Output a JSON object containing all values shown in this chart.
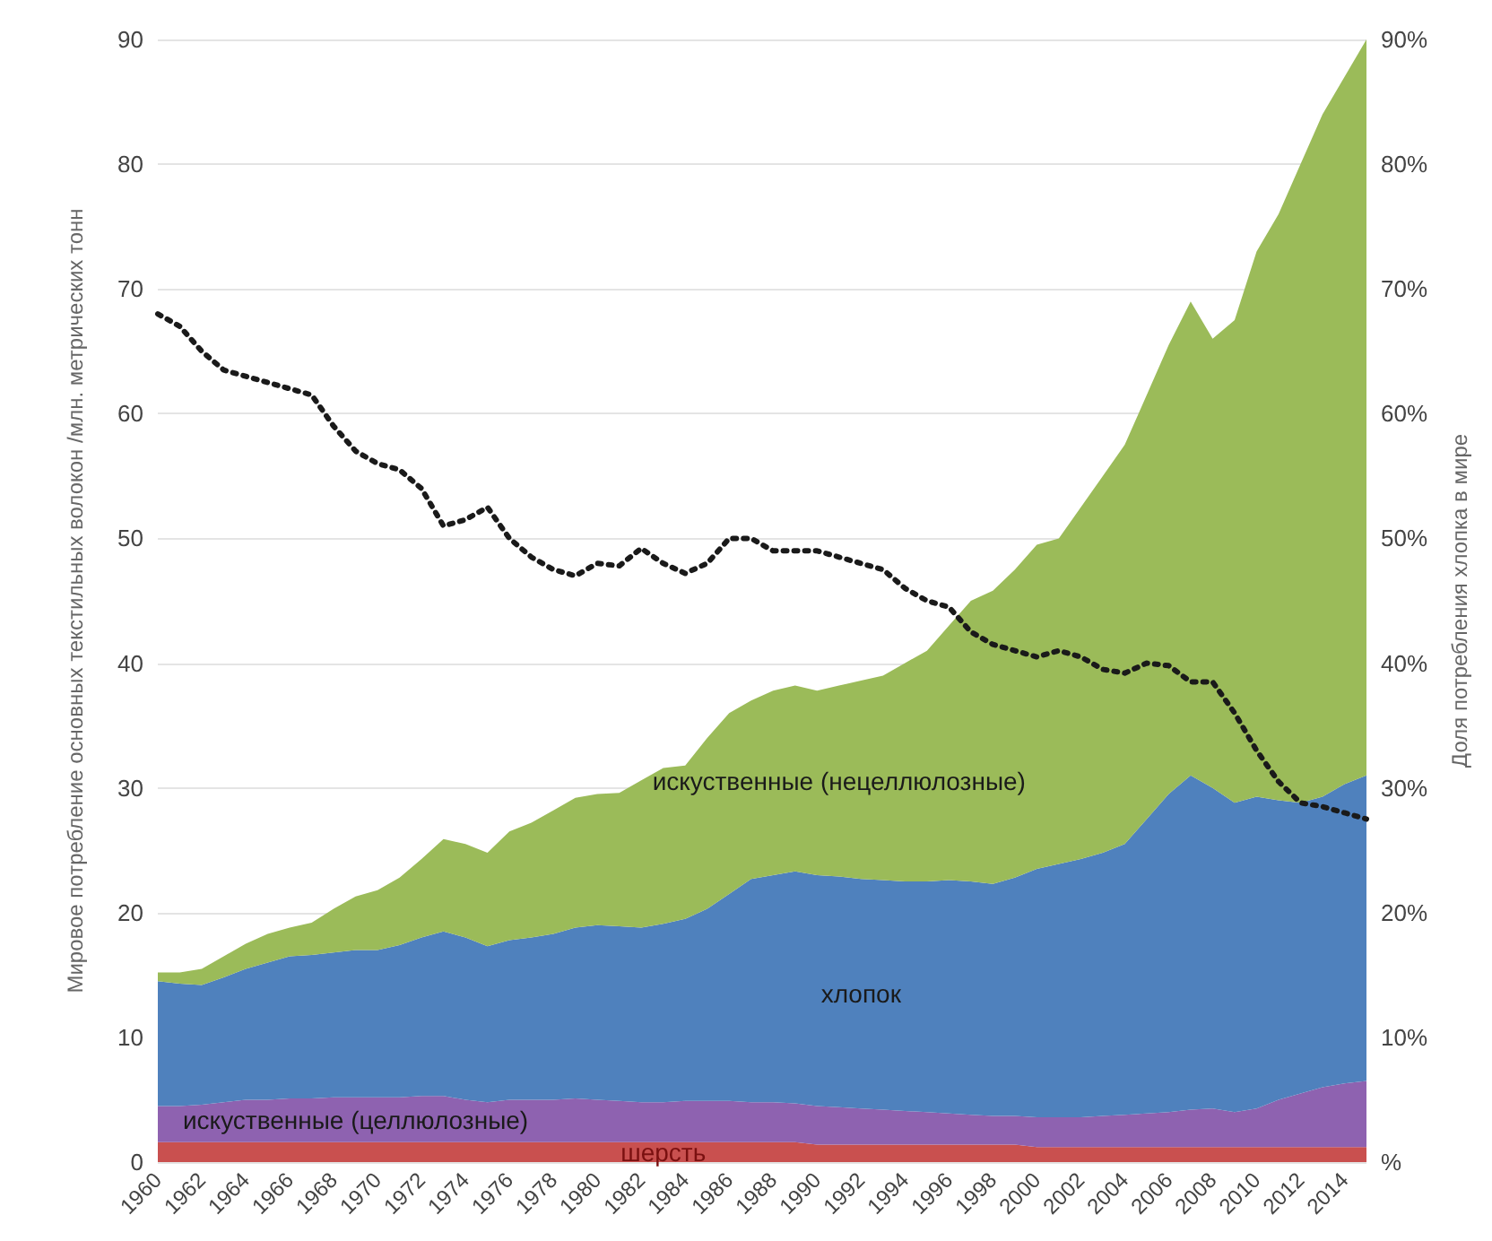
{
  "chart_data": {
    "type": "area",
    "stacked": true,
    "ylabel": "Мировое потребление основных текстильных волокон /млн. метрических тонн",
    "y2label": "Доля потребления хлопка в мире",
    "categories": [
      "1960",
      null,
      "1962",
      null,
      "1964",
      null,
      "1966",
      null,
      "1968",
      null,
      "1970",
      null,
      "1972",
      null,
      "1974",
      null,
      "1976",
      null,
      "1978",
      null,
      "1980",
      null,
      "1982",
      null,
      "1984",
      null,
      "1986",
      null,
      "1988",
      null,
      "1990",
      null,
      "1992",
      null,
      "1994",
      null,
      "1996",
      null,
      "1998",
      null,
      "2000",
      null,
      "2002",
      null,
      "2004",
      null,
      "2006",
      null,
      "2008",
      null,
      "2010",
      null,
      "2012",
      null,
      "2014",
      null
    ],
    "series": [
      {
        "name": "шерсть",
        "color": "#c9504f",
        "values": [
          1.6,
          1.6,
          1.6,
          1.6,
          1.6,
          1.6,
          1.6,
          1.6,
          1.6,
          1.6,
          1.6,
          1.6,
          1.6,
          1.6,
          1.6,
          1.6,
          1.6,
          1.6,
          1.6,
          1.6,
          1.6,
          1.6,
          1.6,
          1.6,
          1.6,
          1.6,
          1.6,
          1.6,
          1.6,
          1.6,
          1.4,
          1.4,
          1.4,
          1.4,
          1.4,
          1.4,
          1.4,
          1.4,
          1.4,
          1.4,
          1.2,
          1.2,
          1.2,
          1.2,
          1.2,
          1.2,
          1.2,
          1.2,
          1.2,
          1.2,
          1.2,
          1.2,
          1.2,
          1.2,
          1.2,
          1.2
        ]
      },
      {
        "name": "искуственные (целлюлозные)",
        "color": "#8e62b0",
        "values": [
          2.9,
          2.9,
          3.0,
          3.2,
          3.4,
          3.4,
          3.5,
          3.5,
          3.6,
          3.6,
          3.6,
          3.6,
          3.7,
          3.7,
          3.4,
          3.2,
          3.4,
          3.4,
          3.4,
          3.5,
          3.4,
          3.3,
          3.2,
          3.2,
          3.3,
          3.3,
          3.3,
          3.2,
          3.2,
          3.1,
          3.1,
          3.0,
          2.9,
          2.8,
          2.7,
          2.6,
          2.5,
          2.4,
          2.3,
          2.3,
          2.4,
          2.4,
          2.4,
          2.5,
          2.6,
          2.7,
          2.8,
          3.0,
          3.1,
          2.8,
          3.1,
          3.8,
          4.3,
          4.8,
          5.1,
          5.3
        ]
      },
      {
        "name": "хлопок",
        "color": "#4f81bd",
        "values": [
          10.0,
          9.8,
          9.6,
          10.0,
          10.5,
          11.0,
          11.4,
          11.5,
          11.6,
          11.8,
          11.8,
          12.2,
          12.7,
          13.2,
          13.0,
          12.5,
          12.8,
          13.0,
          13.3,
          13.7,
          14.0,
          14.0,
          14.0,
          14.3,
          14.6,
          15.4,
          16.6,
          17.9,
          18.2,
          18.6,
          18.5,
          18.5,
          18.4,
          18.4,
          18.4,
          18.5,
          18.7,
          18.7,
          18.6,
          19.1,
          19.9,
          20.3,
          20.7,
          21.1,
          21.7,
          23.6,
          25.5,
          26.8,
          25.7,
          24.8,
          25.0,
          24.0,
          23.3,
          23.3,
          24.0,
          24.5
        ]
      },
      {
        "name": "искуственные (нецеллюлозные)",
        "color": "#9bbb59",
        "values": [
          0.7,
          0.9,
          1.3,
          1.7,
          2.0,
          2.3,
          2.3,
          2.6,
          3.5,
          4.3,
          4.8,
          5.4,
          6.3,
          7.4,
          7.5,
          7.5,
          8.7,
          9.2,
          9.9,
          10.4,
          10.5,
          10.7,
          11.8,
          12.5,
          12.3,
          13.7,
          14.5,
          14.3,
          14.8,
          14.9,
          14.8,
          15.3,
          15.9,
          16.4,
          17.5,
          18.5,
          20.4,
          22.5,
          23.5,
          24.7,
          26.0,
          26.1,
          28.2,
          30.2,
          32.0,
          34.0,
          36.0,
          38.0,
          36.0,
          38.7,
          43.7,
          47.0,
          51.2,
          54.7,
          56.7,
          59.0
        ]
      },
      {
        "type": "line",
        "axis": "y2",
        "color": "#1a1a1a",
        "line_style": "dotted",
        "marker": "none",
        "values": [
          68,
          67,
          65,
          63.5,
          63,
          62.5,
          62,
          61.5,
          59,
          57,
          56,
          55.5,
          54,
          51,
          51.5,
          52.5,
          50,
          48.5,
          47.5,
          47,
          48,
          47.8,
          49.2,
          48,
          47.2,
          48,
          50,
          50,
          49,
          49,
          49,
          48.5,
          48,
          47.5,
          46,
          45,
          44.5,
          42.5,
          41.5,
          41,
          40.5,
          41,
          40.5,
          39.5,
          39.2,
          40,
          39.8,
          38.5,
          38.5,
          36,
          33,
          30.5,
          28.8,
          28.5,
          28,
          27.5
        ]
      }
    ],
    "ylim": [
      0,
      90
    ],
    "yticks": [
      0,
      10,
      20,
      30,
      40,
      50,
      60,
      70,
      80,
      90
    ],
    "y2lim": [
      0,
      90
    ],
    "y2ticks": [
      {
        "value": 0,
        "label": "%"
      },
      {
        "value": 10,
        "label": "10%"
      },
      {
        "value": 20,
        "label": "20%"
      },
      {
        "value": 30,
        "label": "30%"
      },
      {
        "value": 40,
        "label": "40%"
      },
      {
        "value": 50,
        "label": "50%"
      },
      {
        "value": 60,
        "label": "60%"
      },
      {
        "value": 70,
        "label": "70%"
      },
      {
        "value": 80,
        "label": "80%"
      },
      {
        "value": 90,
        "label": "90%"
      }
    ],
    "grid": "y",
    "legend": false
  }
}
